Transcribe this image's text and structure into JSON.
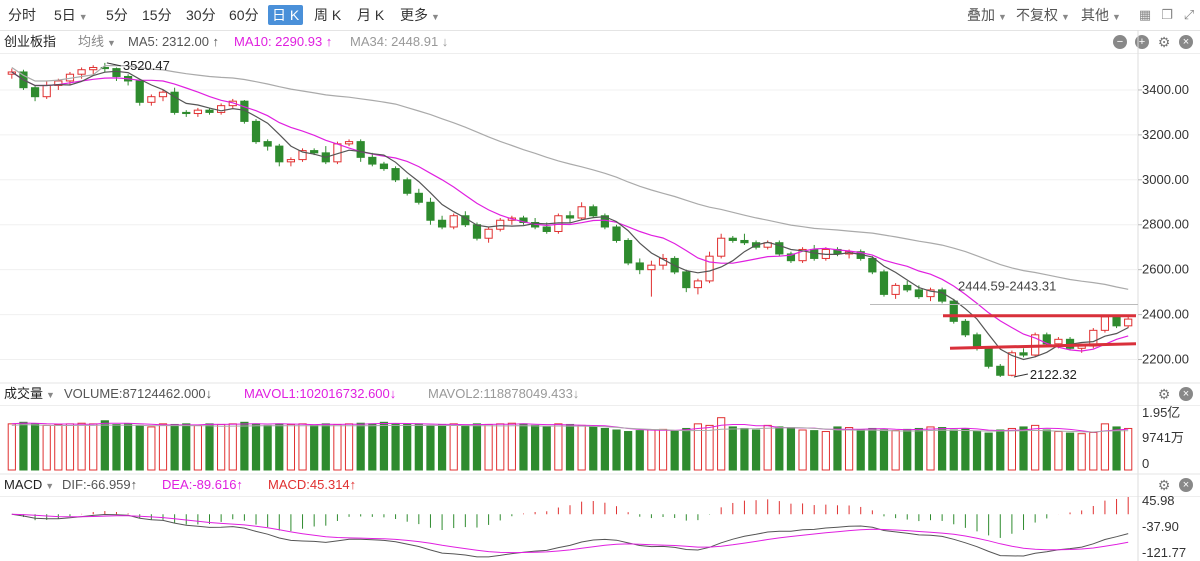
{
  "toolbar": {
    "periods": [
      "分时",
      "5日",
      "5分",
      "15分",
      "30分",
      "60分",
      "日 K",
      "周 K",
      "月 K",
      "更多"
    ],
    "active_period": "日 K",
    "right": [
      "叠加",
      "不复权",
      "其他"
    ],
    "icons": [
      "grid-icon",
      "restore-icon",
      "fullscreen-icon"
    ]
  },
  "main": {
    "name": "创业板指",
    "indicator": "均线",
    "ma5": "MA5: 2312.00 ↑",
    "ma10": "MA10: 2290.93 ↑",
    "ma34": "MA34: 2448.91 ↓",
    "high_label": "3520.47",
    "low_label": "2122.32",
    "range_label": "2444.59-2443.31",
    "y_ticks": [
      "3400.00",
      "3200.00",
      "3000.00",
      "2800.00",
      "2600.00",
      "2400.00",
      "2200.00"
    ]
  },
  "volume": {
    "name": "成交量",
    "vol": "VOLUME:87124462.000↓",
    "mavol1": "MAVOL1:102016732.600↓",
    "mavol2": "MAVOL2:118878049.433↓",
    "y_ticks": [
      "1.95亿",
      "9741万",
      "0"
    ]
  },
  "macd": {
    "name": "MACD",
    "dif": "DIF:-66.959↑",
    "dea": "DEA:-89.616↑",
    "macd": "MACD:45.314↑",
    "y_ticks": [
      "45.98",
      "-37.90",
      "-121.77"
    ]
  },
  "colors": {
    "up": "#e03030",
    "down": "#2e8b2e",
    "ma5": "#555555",
    "ma10": "#e020e0",
    "ma34": "#aaaaaa",
    "active": "#4a90d9"
  },
  "chart_data": {
    "type": "candlestick",
    "title": "创业板指",
    "ylim": [
      2100,
      3560
    ],
    "ohlc": [
      [
        3470,
        3495,
        3450,
        3480
      ],
      [
        3480,
        3490,
        3400,
        3410
      ],
      [
        3410,
        3420,
        3350,
        3370
      ],
      [
        3370,
        3440,
        3360,
        3420
      ],
      [
        3420,
        3450,
        3400,
        3440
      ],
      [
        3440,
        3480,
        3420,
        3470
      ],
      [
        3470,
        3500,
        3450,
        3490
      ],
      [
        3490,
        3510,
        3470,
        3500
      ],
      [
        3500,
        3520.47,
        3480,
        3495
      ],
      [
        3495,
        3500,
        3440,
        3460
      ],
      [
        3460,
        3470,
        3420,
        3440
      ],
      [
        3440,
        3450,
        3330,
        3345
      ],
      [
        3345,
        3380,
        3330,
        3370
      ],
      [
        3370,
        3400,
        3350,
        3390
      ],
      [
        3390,
        3410,
        3290,
        3300
      ],
      [
        3300,
        3310,
        3280,
        3295
      ],
      [
        3295,
        3320,
        3280,
        3310
      ],
      [
        3310,
        3320,
        3290,
        3300
      ],
      [
        3300,
        3340,
        3290,
        3330
      ],
      [
        3330,
        3360,
        3320,
        3350
      ],
      [
        3350,
        3355,
        3250,
        3260
      ],
      [
        3260,
        3270,
        3160,
        3170
      ],
      [
        3170,
        3180,
        3130,
        3150
      ],
      [
        3150,
        3160,
        3060,
        3080
      ],
      [
        3080,
        3100,
        3060,
        3090
      ],
      [
        3090,
        3140,
        3080,
        3130
      ],
      [
        3130,
        3140,
        3110,
        3120
      ],
      [
        3120,
        3150,
        3070,
        3080
      ],
      [
        3080,
        3170,
        3070,
        3160
      ],
      [
        3160,
        3180,
        3150,
        3170
      ],
      [
        3170,
        3180,
        3080,
        3100
      ],
      [
        3100,
        3120,
        3060,
        3070
      ],
      [
        3070,
        3080,
        3040,
        3050
      ],
      [
        3050,
        3060,
        2990,
        3000
      ],
      [
        3000,
        3010,
        2930,
        2940
      ],
      [
        2940,
        2960,
        2890,
        2900
      ],
      [
        2900,
        2920,
        2800,
        2820
      ],
      [
        2820,
        2840,
        2780,
        2790
      ],
      [
        2790,
        2850,
        2780,
        2840
      ],
      [
        2840,
        2860,
        2790,
        2800
      ],
      [
        2800,
        2810,
        2730,
        2740
      ],
      [
        2740,
        2790,
        2720,
        2780
      ],
      [
        2780,
        2830,
        2770,
        2820
      ],
      [
        2820,
        2840,
        2800,
        2830
      ],
      [
        2830,
        2840,
        2800,
        2810
      ],
      [
        2810,
        2830,
        2780,
        2790
      ],
      [
        2790,
        2810,
        2760,
        2770
      ],
      [
        2770,
        2850,
        2760,
        2840
      ],
      [
        2840,
        2860,
        2810,
        2830
      ],
      [
        2830,
        2900,
        2820,
        2880
      ],
      [
        2880,
        2890,
        2830,
        2840
      ],
      [
        2840,
        2850,
        2780,
        2790
      ],
      [
        2790,
        2800,
        2720,
        2730
      ],
      [
        2730,
        2740,
        2620,
        2630
      ],
      [
        2630,
        2650,
        2580,
        2600
      ],
      [
        2600,
        2640,
        2480,
        2620
      ],
      [
        2620,
        2670,
        2600,
        2650
      ],
      [
        2650,
        2660,
        2580,
        2590
      ],
      [
        2590,
        2600,
        2500,
        2520
      ],
      [
        2520,
        2560,
        2490,
        2550
      ],
      [
        2550,
        2680,
        2540,
        2660
      ],
      [
        2660,
        2760,
        2650,
        2740
      ],
      [
        2740,
        2750,
        2720,
        2730
      ],
      [
        2730,
        2760,
        2710,
        2720
      ],
      [
        2720,
        2730,
        2690,
        2700
      ],
      [
        2700,
        2730,
        2690,
        2720
      ],
      [
        2720,
        2730,
        2660,
        2670
      ],
      [
        2670,
        2680,
        2630,
        2640
      ],
      [
        2640,
        2700,
        2630,
        2690
      ],
      [
        2690,
        2710,
        2640,
        2650
      ],
      [
        2650,
        2700,
        2640,
        2690
      ],
      [
        2690,
        2700,
        2660,
        2670
      ],
      [
        2670,
        2690,
        2650,
        2680
      ],
      [
        2680,
        2690,
        2640,
        2650
      ],
      [
        2650,
        2660,
        2580,
        2590
      ],
      [
        2590,
        2600,
        2480,
        2490
      ],
      [
        2490,
        2540,
        2470,
        2530
      ],
      [
        2530,
        2550,
        2500,
        2510
      ],
      [
        2510,
        2530,
        2470,
        2480
      ],
      [
        2480,
        2520,
        2460,
        2510
      ],
      [
        2510,
        2520,
        2450,
        2460
      ],
      [
        2460,
        2470,
        2360,
        2370
      ],
      [
        2370,
        2380,
        2300,
        2310
      ],
      [
        2310,
        2320,
        2240,
        2250
      ],
      [
        2250,
        2260,
        2160,
        2170
      ],
      [
        2170,
        2180,
        2122.32,
        2130
      ],
      [
        2130,
        2240,
        2125,
        2230
      ],
      [
        2230,
        2250,
        2210,
        2220
      ],
      [
        2220,
        2320,
        2210,
        2310
      ],
      [
        2310,
        2320,
        2260,
        2270
      ],
      [
        2270,
        2300,
        2250,
        2290
      ],
      [
        2290,
        2300,
        2240,
        2250
      ],
      [
        2250,
        2270,
        2230,
        2260
      ],
      [
        2260,
        2340,
        2250,
        2330
      ],
      [
        2330,
        2400,
        2320,
        2390
      ],
      [
        2390,
        2400,
        2340,
        2350
      ],
      [
        2350,
        2390,
        2340,
        2380
      ]
    ],
    "volume_max": 195000000,
    "volume": [
      150,
      155,
      150,
      145,
      148,
      150,
      152,
      150,
      160,
      148,
      150,
      145,
      140,
      150,
      148,
      150,
      145,
      150,
      148,
      150,
      155,
      150,
      145,
      150,
      148,
      150,
      145,
      150,
      148,
      150,
      152,
      150,
      155,
      150,
      148,
      150,
      145,
      148,
      150,
      145,
      150,
      148,
      150,
      152,
      150,
      145,
      140,
      150,
      148,
      145,
      140,
      135,
      130,
      125,
      128,
      130,
      132,
      128,
      135,
      150,
      145,
      170,
      140,
      135,
      130,
      145,
      140,
      138,
      130,
      128,
      125,
      140,
      138,
      130,
      135,
      130,
      128,
      132,
      135,
      140,
      138,
      130,
      135,
      125,
      120,
      130,
      135,
      140,
      145,
      130,
      125,
      120,
      118,
      122,
      150,
      140,
      135
    ]
  }
}
